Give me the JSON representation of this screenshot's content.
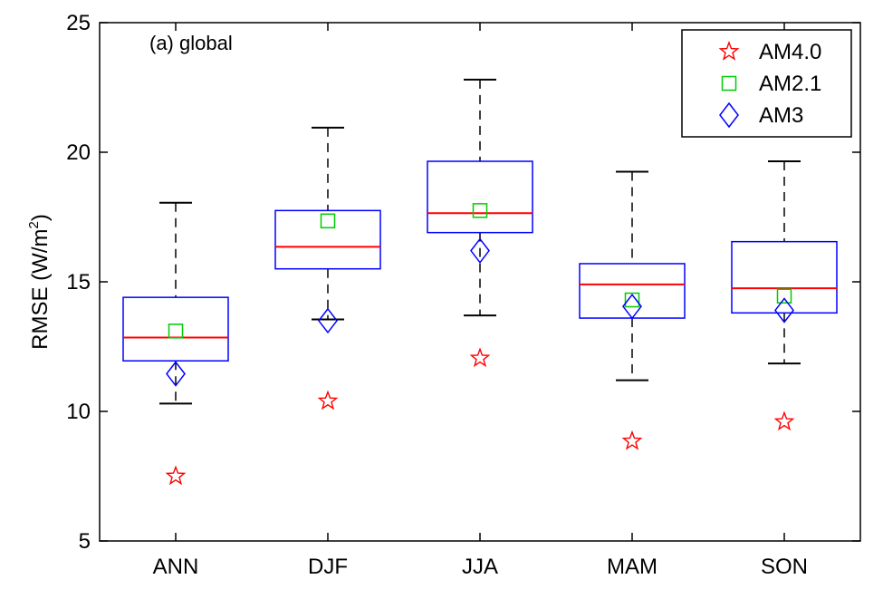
{
  "chart_data": {
    "type": "box",
    "annotation": "(a) global",
    "ylabel": "RMSE (W/m",
    "ylabel_sup": "2",
    "ylabel_close": ")",
    "ylim": [
      5,
      25
    ],
    "yticks": [
      5,
      10,
      15,
      20,
      25
    ],
    "categories": [
      "ANN",
      "DJF",
      "JJA",
      "MAM",
      "SON"
    ],
    "boxes": [
      {
        "whisker_low": 10.3,
        "q1": 11.95,
        "median": 12.85,
        "q3": 14.4,
        "whisker_high": 18.05
      },
      {
        "whisker_low": 13.55,
        "q1": 15.5,
        "median": 16.35,
        "q3": 17.75,
        "whisker_high": 20.95
      },
      {
        "whisker_low": 13.7,
        "q1": 16.9,
        "median": 17.65,
        "q3": 19.65,
        "whisker_high": 22.8
      },
      {
        "whisker_low": 11.2,
        "q1": 13.6,
        "median": 14.9,
        "q3": 15.7,
        "whisker_high": 19.25
      },
      {
        "whisker_low": 11.85,
        "q1": 13.8,
        "median": 14.75,
        "q3": 16.55,
        "whisker_high": 19.65
      }
    ],
    "series": [
      {
        "name": "AM4.0",
        "marker": "star",
        "color": "#ff0000",
        "values": [
          7.5,
          10.4,
          12.05,
          8.85,
          9.6
        ]
      },
      {
        "name": "AM2.1",
        "marker": "square",
        "color": "#00cc00",
        "values": [
          13.1,
          17.35,
          17.75,
          14.3,
          14.45
        ]
      },
      {
        "name": "AM3",
        "marker": "diamond",
        "color": "#0000ff",
        "values": [
          11.45,
          13.5,
          16.2,
          14.05,
          13.9
        ]
      }
    ],
    "box_color": "#0000ff",
    "median_color": "#ff0000",
    "whisker_color": "#000000",
    "legend_position": "top-right",
    "grid": false
  }
}
